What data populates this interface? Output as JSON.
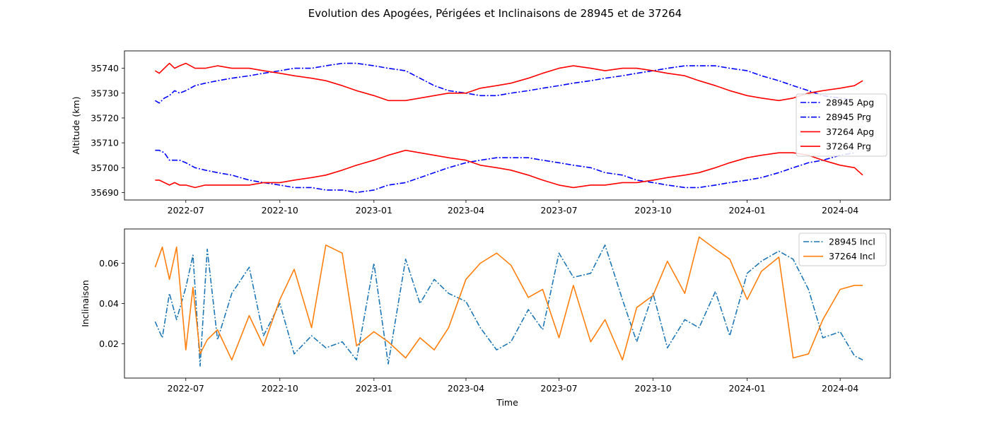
{
  "title": "Evolution des Apogées, Périgées et Inclinaisons de 28945 et de 37264",
  "colors": {
    "blue": "#0000ff",
    "red": "#ff0000",
    "tab_blue": "#1f77b4",
    "tab_orange": "#ff7f0e"
  },
  "chart_data": [
    {
      "type": "line",
      "xlabel": "",
      "ylabel": "Altitude (km)",
      "xlim": [
        "2022-05-02",
        "2024-05-20"
      ],
      "ylim": [
        35687,
        35747
      ],
      "yticks": [
        35690,
        35700,
        35710,
        35720,
        35730,
        35740
      ],
      "xticks": [
        "2022-07-01",
        "2022-10-01",
        "2023-01-01",
        "2023-04-01",
        "2023-07-01",
        "2023-10-01",
        "2024-01-01",
        "2024-04-01"
      ],
      "xtick_labels": [
        "2022-07",
        "2022-10",
        "2023-01",
        "2023-04",
        "2023-07",
        "2023-10",
        "2024-01",
        "2024-04"
      ],
      "legend_position": "right",
      "series": [
        {
          "name": "28945 Apg",
          "color": "#0000ff",
          "style": "dashdot",
          "x": [
            "2022-06-01",
            "2022-06-05",
            "2022-06-10",
            "2022-06-15",
            "2022-06-20",
            "2022-06-25",
            "2022-07-01",
            "2022-07-10",
            "2022-07-20",
            "2022-08-01",
            "2022-08-15",
            "2022-09-01",
            "2022-09-15",
            "2022-10-01",
            "2022-10-15",
            "2022-11-01",
            "2022-11-15",
            "2022-12-01",
            "2022-12-15",
            "2023-01-01",
            "2023-01-15",
            "2023-02-01",
            "2023-02-15",
            "2023-03-01",
            "2023-03-15",
            "2023-04-01",
            "2023-04-15",
            "2023-05-01",
            "2023-05-15",
            "2023-06-01",
            "2023-06-15",
            "2023-07-01",
            "2023-07-15",
            "2023-08-01",
            "2023-08-15",
            "2023-09-01",
            "2023-09-15",
            "2023-10-01",
            "2023-10-15",
            "2023-11-01",
            "2023-11-15",
            "2023-12-01",
            "2023-12-15",
            "2024-01-01",
            "2024-01-15",
            "2024-02-01",
            "2024-02-15",
            "2024-03-01",
            "2024-03-15",
            "2024-04-01",
            "2024-04-15"
          ],
          "y": [
            35727,
            35726,
            35728,
            35729,
            35731,
            35730,
            35731,
            35733,
            35734,
            35735,
            35736,
            35737,
            35738,
            35739,
            35740,
            35740,
            35741,
            35742,
            35742,
            35741,
            35740,
            35739,
            35736,
            35733,
            35731,
            35730,
            35729,
            35729,
            35730,
            35731,
            35732,
            35733,
            35734,
            35735,
            35736,
            35737,
            35738,
            35739,
            35740,
            35741,
            35741,
            35741,
            35740,
            35739,
            35737,
            35735,
            35733,
            35731,
            35729,
            35728,
            35727
          ]
        },
        {
          "name": "28945 Prg",
          "color": "#0000ff",
          "style": "dashdot",
          "x": [
            "2022-06-01",
            "2022-06-05",
            "2022-06-10",
            "2022-06-15",
            "2022-06-20",
            "2022-06-25",
            "2022-07-01",
            "2022-07-10",
            "2022-07-20",
            "2022-08-01",
            "2022-08-15",
            "2022-09-01",
            "2022-09-15",
            "2022-10-01",
            "2022-10-15",
            "2022-11-01",
            "2022-11-15",
            "2022-12-01",
            "2022-12-15",
            "2023-01-01",
            "2023-01-15",
            "2023-02-01",
            "2023-02-15",
            "2023-03-01",
            "2023-03-15",
            "2023-04-01",
            "2023-04-15",
            "2023-05-01",
            "2023-05-15",
            "2023-06-01",
            "2023-06-15",
            "2023-07-01",
            "2023-07-15",
            "2023-08-01",
            "2023-08-15",
            "2023-09-01",
            "2023-09-15",
            "2023-10-01",
            "2023-10-15",
            "2023-11-01",
            "2023-11-15",
            "2023-12-01",
            "2023-12-15",
            "2024-01-01",
            "2024-01-15",
            "2024-02-01",
            "2024-02-15",
            "2024-03-01",
            "2024-03-15",
            "2024-04-01",
            "2024-04-15"
          ],
          "y": [
            35707,
            35707,
            35706,
            35703,
            35703,
            35703,
            35702,
            35700,
            35699,
            35698,
            35697,
            35695,
            35694,
            35693,
            35692,
            35692,
            35691,
            35691,
            35690,
            35691,
            35693,
            35694,
            35696,
            35698,
            35700,
            35702,
            35703,
            35704,
            35704,
            35704,
            35703,
            35702,
            35701,
            35700,
            35698,
            35697,
            35695,
            35694,
            35693,
            35692,
            35692,
            35693,
            35694,
            35695,
            35696,
            35698,
            35700,
            35702,
            35703,
            35705,
            35706
          ]
        },
        {
          "name": "37264 Apg",
          "color": "#ff0000",
          "style": "solid",
          "x": [
            "2022-06-01",
            "2022-06-05",
            "2022-06-10",
            "2022-06-15",
            "2022-06-20",
            "2022-06-25",
            "2022-07-01",
            "2022-07-10",
            "2022-07-20",
            "2022-08-01",
            "2022-08-15",
            "2022-09-01",
            "2022-09-15",
            "2022-10-01",
            "2022-10-15",
            "2022-11-01",
            "2022-11-15",
            "2022-12-01",
            "2022-12-15",
            "2023-01-01",
            "2023-01-15",
            "2023-02-01",
            "2023-02-15",
            "2023-03-01",
            "2023-03-15",
            "2023-04-01",
            "2023-04-15",
            "2023-05-01",
            "2023-05-15",
            "2023-06-01",
            "2023-06-15",
            "2023-07-01",
            "2023-07-15",
            "2023-08-01",
            "2023-08-15",
            "2023-09-01",
            "2023-09-15",
            "2023-10-01",
            "2023-10-15",
            "2023-11-01",
            "2023-11-15",
            "2023-12-01",
            "2023-12-15",
            "2024-01-01",
            "2024-01-15",
            "2024-02-01",
            "2024-02-15",
            "2024-03-01",
            "2024-03-15",
            "2024-04-01",
            "2024-04-15",
            "2024-04-23"
          ],
          "y": [
            35739,
            35738,
            35740,
            35742,
            35740,
            35741,
            35742,
            35740,
            35740,
            35741,
            35740,
            35740,
            35739,
            35738,
            35737,
            35736,
            35735,
            35733,
            35731,
            35729,
            35727,
            35727,
            35728,
            35729,
            35730,
            35730,
            35732,
            35733,
            35734,
            35736,
            35738,
            35740,
            35741,
            35740,
            35739,
            35740,
            35740,
            35739,
            35738,
            35737,
            35735,
            35733,
            35731,
            35729,
            35728,
            35727,
            35728,
            35730,
            35731,
            35732,
            35733,
            35735
          ]
        },
        {
          "name": "37264 Prg",
          "color": "#ff0000",
          "style": "solid",
          "x": [
            "2022-06-01",
            "2022-06-05",
            "2022-06-10",
            "2022-06-15",
            "2022-06-20",
            "2022-06-25",
            "2022-07-01",
            "2022-07-10",
            "2022-07-20",
            "2022-08-01",
            "2022-08-15",
            "2022-09-01",
            "2022-09-15",
            "2022-10-01",
            "2022-10-15",
            "2022-11-01",
            "2022-11-15",
            "2022-12-01",
            "2022-12-15",
            "2023-01-01",
            "2023-01-15",
            "2023-02-01",
            "2023-02-15",
            "2023-03-01",
            "2023-03-15",
            "2023-04-01",
            "2023-04-15",
            "2023-05-01",
            "2023-05-15",
            "2023-06-01",
            "2023-06-15",
            "2023-07-01",
            "2023-07-15",
            "2023-08-01",
            "2023-08-15",
            "2023-09-01",
            "2023-09-15",
            "2023-10-01",
            "2023-10-15",
            "2023-11-01",
            "2023-11-15",
            "2023-12-01",
            "2023-12-15",
            "2024-01-01",
            "2024-01-15",
            "2024-02-01",
            "2024-02-15",
            "2024-03-01",
            "2024-03-15",
            "2024-04-01",
            "2024-04-15",
            "2024-04-23"
          ],
          "y": [
            35695,
            35695,
            35694,
            35693,
            35694,
            35693,
            35693,
            35692,
            35693,
            35693,
            35693,
            35693,
            35694,
            35694,
            35695,
            35696,
            35697,
            35699,
            35701,
            35703,
            35705,
            35707,
            35706,
            35705,
            35704,
            35703,
            35701,
            35700,
            35699,
            35697,
            35695,
            35693,
            35692,
            35693,
            35693,
            35694,
            35694,
            35695,
            35696,
            35697,
            35698,
            35700,
            35702,
            35704,
            35705,
            35706,
            35706,
            35705,
            35703,
            35701,
            35700,
            35697
          ]
        }
      ]
    },
    {
      "type": "line",
      "xlabel": "Time",
      "ylabel": "Inclinaison",
      "xlim": [
        "2022-05-02",
        "2024-05-20"
      ],
      "ylim": [
        0.003,
        0.077
      ],
      "yticks": [
        0.02,
        0.04,
        0.06
      ],
      "ytick_labels": [
        "0.02",
        "0.04",
        "0.06"
      ],
      "xticks": [
        "2022-07-01",
        "2022-10-01",
        "2023-01-01",
        "2023-04-01",
        "2023-07-01",
        "2023-10-01",
        "2024-01-01",
        "2024-04-01"
      ],
      "xtick_labels": [
        "2022-07",
        "2022-10",
        "2023-01",
        "2023-04",
        "2023-07",
        "2023-10",
        "2024-01",
        "2024-04"
      ],
      "legend_position": "top-right",
      "series": [
        {
          "name": "28945 Incl",
          "color": "#1f77b4",
          "style": "dashdot",
          "x": [
            "2022-06-01",
            "2022-06-08",
            "2022-06-15",
            "2022-06-22",
            "2022-07-01",
            "2022-07-08",
            "2022-07-15",
            "2022-07-22",
            "2022-08-01",
            "2022-08-15",
            "2022-09-01",
            "2022-09-15",
            "2022-10-01",
            "2022-10-15",
            "2022-11-01",
            "2022-11-15",
            "2022-12-01",
            "2022-12-15",
            "2023-01-01",
            "2023-01-15",
            "2023-02-01",
            "2023-02-15",
            "2023-03-01",
            "2023-03-15",
            "2023-04-01",
            "2023-04-15",
            "2023-05-01",
            "2023-05-15",
            "2023-06-01",
            "2023-06-15",
            "2023-07-01",
            "2023-07-15",
            "2023-08-01",
            "2023-08-15",
            "2023-09-01",
            "2023-09-15",
            "2023-10-01",
            "2023-10-15",
            "2023-11-01",
            "2023-11-15",
            "2023-12-01",
            "2023-12-15",
            "2024-01-01",
            "2024-01-15",
            "2024-02-01",
            "2024-02-15",
            "2024-03-01",
            "2024-03-15",
            "2024-04-01",
            "2024-04-15",
            "2024-04-23"
          ],
          "y": [
            0.031,
            0.023,
            0.045,
            0.032,
            0.048,
            0.064,
            0.009,
            0.067,
            0.022,
            0.045,
            0.058,
            0.024,
            0.04,
            0.015,
            0.024,
            0.018,
            0.021,
            0.012,
            0.06,
            0.01,
            0.062,
            0.04,
            0.052,
            0.045,
            0.041,
            0.028,
            0.017,
            0.021,
            0.037,
            0.027,
            0.065,
            0.053,
            0.055,
            0.069,
            0.042,
            0.021,
            0.045,
            0.018,
            0.032,
            0.028,
            0.046,
            0.024,
            0.055,
            0.061,
            0.066,
            0.062,
            0.047,
            0.023,
            0.026,
            0.014,
            0.012
          ]
        },
        {
          "name": "37264 Incl",
          "color": "#ff7f0e",
          "style": "solid",
          "x": [
            "2022-06-01",
            "2022-06-08",
            "2022-06-15",
            "2022-06-22",
            "2022-07-01",
            "2022-07-08",
            "2022-07-15",
            "2022-07-22",
            "2022-08-01",
            "2022-08-15",
            "2022-09-01",
            "2022-09-15",
            "2022-10-01",
            "2022-10-15",
            "2022-11-01",
            "2022-11-15",
            "2022-12-01",
            "2022-12-15",
            "2023-01-01",
            "2023-01-15",
            "2023-02-01",
            "2023-02-15",
            "2023-03-01",
            "2023-03-15",
            "2023-04-01",
            "2023-04-15",
            "2023-05-01",
            "2023-05-15",
            "2023-06-01",
            "2023-06-15",
            "2023-07-01",
            "2023-07-15",
            "2023-08-01",
            "2023-08-15",
            "2023-09-01",
            "2023-09-15",
            "2023-10-01",
            "2023-10-15",
            "2023-11-01",
            "2023-11-15",
            "2023-12-01",
            "2023-12-15",
            "2024-01-01",
            "2024-01-15",
            "2024-02-01",
            "2024-02-15",
            "2024-03-01",
            "2024-03-15",
            "2024-04-01",
            "2024-04-15",
            "2024-04-23"
          ],
          "y": [
            0.058,
            0.068,
            0.052,
            0.068,
            0.017,
            0.048,
            0.015,
            0.022,
            0.027,
            0.012,
            0.034,
            0.019,
            0.042,
            0.057,
            0.028,
            0.069,
            0.065,
            0.019,
            0.026,
            0.021,
            0.013,
            0.023,
            0.017,
            0.028,
            0.052,
            0.06,
            0.065,
            0.059,
            0.043,
            0.047,
            0.023,
            0.049,
            0.021,
            0.032,
            0.012,
            0.038,
            0.044,
            0.061,
            0.045,
            0.073,
            0.067,
            0.062,
            0.042,
            0.056,
            0.063,
            0.013,
            0.015,
            0.032,
            0.047,
            0.049,
            0.049
          ]
        }
      ]
    }
  ]
}
